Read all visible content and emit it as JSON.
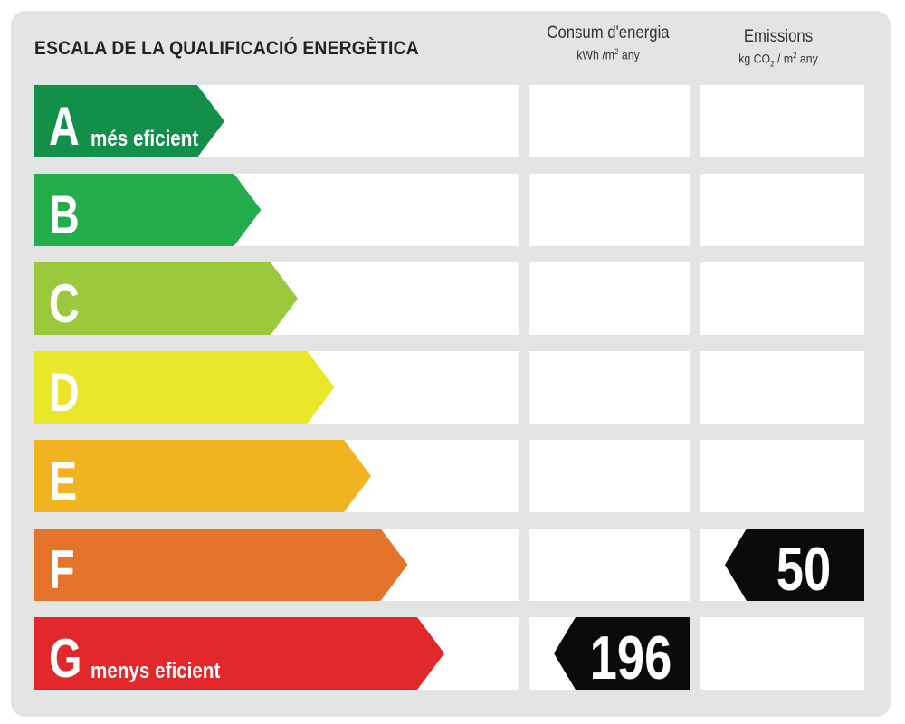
{
  "title": "ESCALA DE LA QUALIFICACIÓ ENERGÈTICA",
  "columns": {
    "energy": {
      "title": "Consum d'energia",
      "unit_main": "kWh /m",
      "unit_sup": "2",
      "unit_tail": " any"
    },
    "emissions": {
      "title": "Emissions",
      "unit_a": "kg CO",
      "unit_sub": "2",
      "unit_b": " / m",
      "unit_sup": "2",
      "unit_tail": " any"
    }
  },
  "chart_data": {
    "type": "bar",
    "categories": [
      "A",
      "B",
      "C",
      "D",
      "E",
      "F",
      "G"
    ],
    "category_notes": {
      "A": "més eficient",
      "G": "menys eficient"
    },
    "colors": [
      "#12904a",
      "#23ad4b",
      "#9bc83d",
      "#e9e72a",
      "#efb41f",
      "#e3742a",
      "#e2282a"
    ],
    "ratings": {
      "energy": {
        "rating": "G",
        "value": 196
      },
      "emissions": {
        "rating": "F",
        "value": 50
      }
    }
  }
}
